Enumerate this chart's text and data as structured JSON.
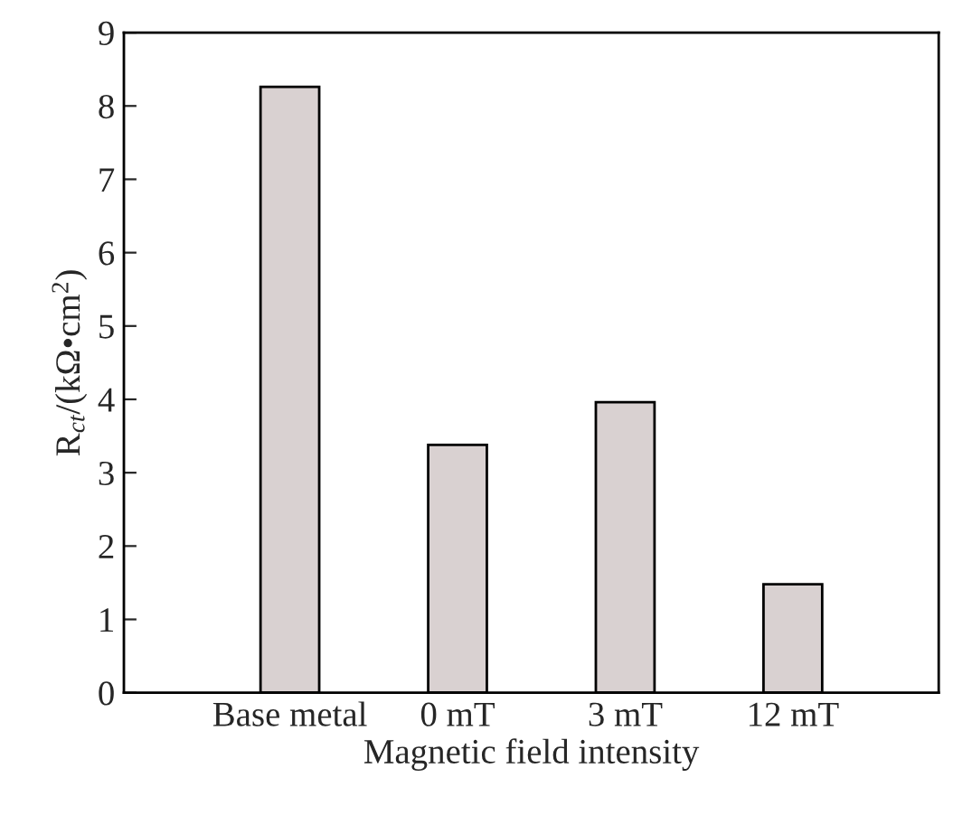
{
  "chart_data": {
    "type": "bar",
    "xlabel": "Magnetic field intensity",
    "ylabel": "R$_{ct}$/(kΩ•cm$^{2}$)",
    "categories": [
      "Base metal",
      "0 mT",
      "3 mT",
      "12 mT"
    ],
    "values": [
      8.26,
      3.38,
      3.96,
      1.48
    ],
    "color": "#d9d1d1",
    "ylim": [
      0,
      9
    ],
    "yticks": [
      0,
      1,
      2,
      3,
      4,
      5,
      6,
      7,
      8,
      9
    ],
    "grid": false,
    "legend": false
  }
}
